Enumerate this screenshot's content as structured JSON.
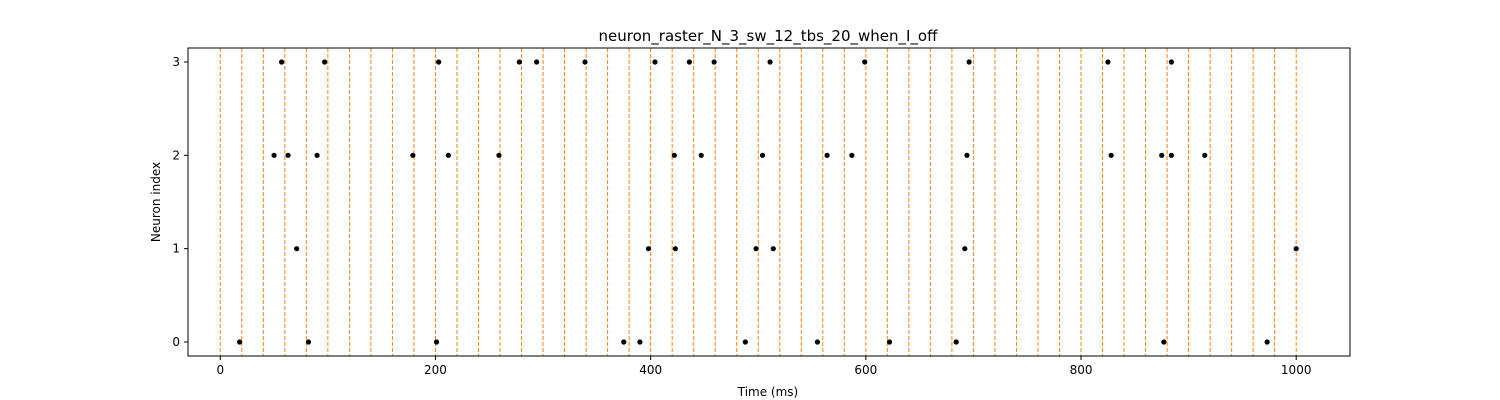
{
  "chart_data": {
    "type": "scatter",
    "title": "neuron_raster_N_3_sw_12_tbs_20_when_I_off",
    "xlabel": "Time (ms)",
    "ylabel": "Neuron index",
    "xlim": [
      -30,
      1050
    ],
    "ylim": [
      -0.15,
      3.15
    ],
    "xticks": [
      0,
      200,
      400,
      600,
      800,
      1000
    ],
    "yticks": [
      0,
      1,
      2,
      3
    ],
    "grid": false,
    "marker_color": "#000000",
    "vline_color": "#ff7f0e",
    "vlines": [
      0,
      20,
      40,
      60,
      80,
      100,
      120,
      140,
      160,
      180,
      200,
      220,
      240,
      260,
      280,
      300,
      320,
      340,
      360,
      380,
      400,
      420,
      440,
      460,
      480,
      500,
      520,
      540,
      560,
      580,
      600,
      620,
      640,
      660,
      680,
      700,
      720,
      740,
      760,
      780,
      800,
      820,
      840,
      860,
      880,
      900,
      920,
      940,
      960,
      980,
      1000
    ],
    "series": [
      {
        "neuron": 0,
        "spikes": [
          18,
          82,
          201,
          375,
          390,
          488,
          555,
          622,
          684,
          877,
          973
        ]
      },
      {
        "neuron": 1,
        "spikes": [
          71,
          398,
          423,
          498,
          514,
          692,
          1000
        ]
      },
      {
        "neuron": 2,
        "spikes": [
          50,
          63,
          90,
          179,
          212,
          259,
          422,
          447,
          504,
          564,
          587,
          694,
          828,
          875,
          884,
          915
        ]
      },
      {
        "neuron": 3,
        "spikes": [
          57,
          97,
          203,
          278,
          294,
          339,
          404,
          436,
          459,
          511,
          599,
          696,
          825,
          884
        ]
      }
    ]
  }
}
